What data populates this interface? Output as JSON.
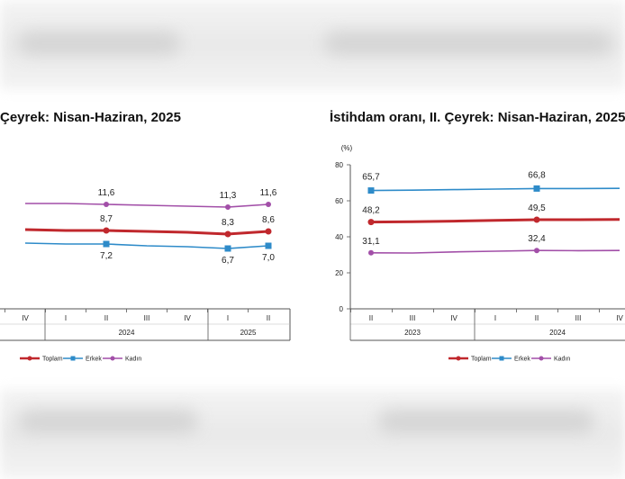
{
  "chart_data": [
    {
      "type": "line",
      "title": "Çeyrek: Nisan-Haziran, 2025",
      "x": [
        "IV",
        "I",
        "II",
        "III",
        "IV",
        "I",
        "II"
      ],
      "groups": [
        "2024",
        "2025"
      ],
      "series": [
        {
          "name": "Toplam",
          "color": "#c0282d",
          "values": [
            8.8,
            8.7,
            8.7,
            8.6,
            8.5,
            8.3,
            8.6
          ],
          "labels": [
            "",
            "",
            "8,7",
            "",
            "",
            "8,3",
            "8,6"
          ]
        },
        {
          "name": "Erkek",
          "color": "#2e8bc9",
          "values": [
            7.3,
            7.2,
            7.2,
            7.0,
            6.9,
            6.7,
            7.0
          ],
          "labels": [
            "",
            "",
            "7,2",
            "",
            "",
            "6,7",
            "7,0"
          ]
        },
        {
          "name": "Kadın",
          "color": "#a24fa8",
          "values": [
            11.7,
            11.7,
            11.6,
            11.5,
            11.4,
            11.3,
            11.6
          ],
          "labels": [
            "",
            "",
            "11,6",
            "",
            "",
            "11,3",
            "11,6"
          ]
        }
      ]
    },
    {
      "type": "line",
      "title": "İstihdam oranı, II. Çeyrek: Nisan-Haziran, 2025",
      "unit": "(%)",
      "ylim": [
        0,
        80
      ],
      "yticks": [
        "0",
        "20",
        "40",
        "60",
        "80"
      ],
      "x": [
        "II",
        "III",
        "IV",
        "I",
        "II",
        "III",
        "IV"
      ],
      "groups": [
        "2023",
        "2024"
      ],
      "series": [
        {
          "name": "Toplam",
          "color": "#c0282d",
          "values": [
            48.2,
            48.4,
            48.7,
            49.1,
            49.5,
            49.5,
            49.6
          ],
          "labels": [
            "48,2",
            "",
            "",
            "",
            "49,5",
            "",
            ""
          ]
        },
        {
          "name": "Erkek",
          "color": "#2e8bc9",
          "values": [
            65.7,
            65.9,
            66.2,
            66.5,
            66.8,
            66.8,
            66.9
          ],
          "labels": [
            "65,7",
            "",
            "",
            "",
            "66,8",
            "",
            ""
          ]
        },
        {
          "name": "Kadın",
          "color": "#a24fa8",
          "values": [
            31.1,
            31.0,
            31.6,
            32.0,
            32.4,
            32.3,
            32.4
          ],
          "labels": [
            "31,1",
            "",
            "",
            "",
            "32,4",
            "",
            ""
          ]
        }
      ]
    }
  ]
}
